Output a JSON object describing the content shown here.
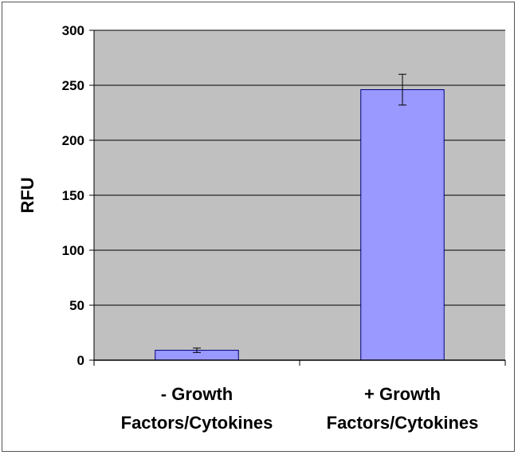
{
  "chart_data": {
    "type": "bar",
    "categories": [
      [
        "- Growth",
        "Factors/Cytokines"
      ],
      [
        "+ Growth",
        "Factors/Cytokines"
      ]
    ],
    "values": [
      9,
      246
    ],
    "error": [
      2,
      14
    ],
    "title": "",
    "xlabel": "",
    "ylabel": "RFU",
    "ylim": [
      0,
      300
    ],
    "yticks": [
      0,
      50,
      100,
      150,
      200,
      250,
      300
    ],
    "grid": true,
    "legend": "none",
    "colors": {
      "bar": "#9999ff",
      "bar_edge": "#000080",
      "plot_background": "#c0c0c0",
      "gridline": "#000000"
    }
  }
}
